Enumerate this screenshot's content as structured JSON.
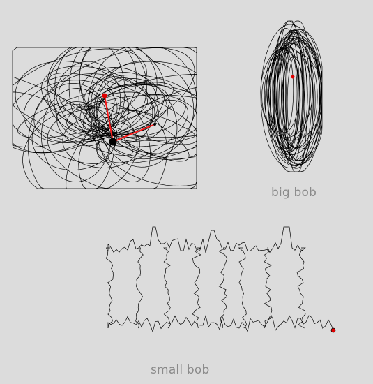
{
  "labels": {
    "big_bob": "big bob",
    "small_bob": "small bob"
  },
  "colors": {
    "background": "#dcdcdc",
    "trace": "#000000",
    "arm": "#ff0000",
    "label": "#8a8a8a"
  }
}
